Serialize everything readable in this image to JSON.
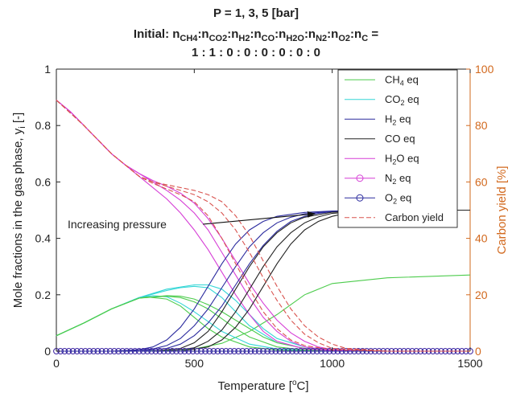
{
  "chart_data": {
    "type": "line",
    "title_lines": [
      "P = 1, 3, 5 [bar]",
      "Initial: n_CH4:n_CO2:n_H2:n_CO:n_H2O:n_N2:n_O2:n_C =",
      "1 : 1 : 0 : 0 : 0 : 0 : 0 : 0"
    ],
    "title_rich": {
      "line1": "P = 1, 3, 5 [bar]",
      "line2_prefix": "Initial: ",
      "line2_parts": [
        {
          "base": "n",
          "sub": "CH4"
        },
        {
          "base": ":n",
          "sub": "CO2"
        },
        {
          "base": ":n",
          "sub": "H2"
        },
        {
          "base": ":n",
          "sub": "CO"
        },
        {
          "base": ":n",
          "sub": "H2O"
        },
        {
          "base": ":n",
          "sub": "N2"
        },
        {
          "base": ":n",
          "sub": "O2"
        },
        {
          "base": ":n",
          "sub": "C"
        }
      ],
      "line2_suffix": " =",
      "line3": "1 : 1 : 0 : 0 : 0 : 0 : 0 : 0"
    },
    "xlabel": "Temperature [°C]",
    "xlabel_parts": {
      "pre": "Temperature [",
      "sup": "o",
      "post": "C]"
    },
    "ylabel": "Mole fractions in the gas phase, y_i [-]",
    "ylabel_parts": {
      "pre": "Mole fractions in the gas phase, y",
      "sub": "i",
      "post": " [-]"
    },
    "y2label": "Carbon yield [%]",
    "xlim": [
      0,
      1500
    ],
    "ylim": [
      0,
      1
    ],
    "y2lim": [
      0,
      100
    ],
    "xticks": [
      0,
      500,
      1000,
      1500
    ],
    "yticks": [
      0,
      0.2,
      0.4,
      0.6,
      0.8,
      1
    ],
    "y2ticks": [
      0,
      20,
      40,
      60,
      80,
      100
    ],
    "legend_position": "top-right",
    "annotation": "Increasing pressure",
    "legend": [
      {
        "label": "CH4 eq",
        "base": "CH",
        "sub": "4",
        "post": " eq",
        "color": "#4dcc4d",
        "marker": "none",
        "dash": "solid"
      },
      {
        "label": "CO2 eq",
        "base": "CO",
        "sub": "2",
        "post": " eq",
        "color": "#33d6d6",
        "marker": "none",
        "dash": "solid"
      },
      {
        "label": "H2 eq",
        "base": "H",
        "sub": "2",
        "post": " eq",
        "color": "#2b2b9e",
        "marker": "none",
        "dash": "solid"
      },
      {
        "label": "CO eq",
        "base": "CO eq",
        "sub": "",
        "post": "",
        "color": "#222222",
        "marker": "none",
        "dash": "solid"
      },
      {
        "label": "H2O eq",
        "base": "H",
        "sub": "2",
        "post": "O eq",
        "color": "#d63fd6",
        "marker": "none",
        "dash": "solid"
      },
      {
        "label": "N2 eq",
        "base": "N",
        "sub": "2",
        "post": " eq",
        "color": "#d63fd6",
        "marker": "circle",
        "dash": "solid"
      },
      {
        "label": "O2 eq",
        "base": "O",
        "sub": "2",
        "post": " eq",
        "color": "#2b2b9e",
        "marker": "circle",
        "dash": "solid"
      },
      {
        "label": "Carbon yield",
        "base": "Carbon yield",
        "sub": "",
        "post": "",
        "color": "#d9534f",
        "marker": "none",
        "dash": "dashed"
      }
    ],
    "series": [
      {
        "name": "CH4 eq",
        "pressure": "P1",
        "color": "#4dcc4d",
        "axis": "left",
        "dash": "solid",
        "x": [
          0,
          100,
          200,
          300,
          400,
          500,
          600,
          700,
          800,
          900,
          1000,
          1200,
          1500
        ],
        "y": [
          0,
          0,
          0,
          0,
          0.002,
          0.008,
          0.028,
          0.07,
          0.13,
          0.2,
          0.24,
          0.26,
          0.27
        ]
      },
      {
        "name": "CO2 eq",
        "pressure": "P1",
        "color": "#33d6d6",
        "axis": "left",
        "dash": "solid",
        "x": [
          0,
          100,
          200,
          300,
          350,
          400,
          450,
          500,
          550,
          600,
          700,
          800,
          900,
          1000,
          1200,
          1500
        ],
        "y": [
          0.055,
          0.1,
          0.15,
          0.19,
          0.197,
          0.193,
          0.17,
          0.14,
          0.105,
          0.07,
          0.025,
          0.008,
          0.003,
          0.001,
          0,
          0
        ]
      },
      {
        "name": "CO2 eq",
        "pressure": "P3",
        "color": "#33d6d6",
        "axis": "left",
        "dash": "solid",
        "x": [
          0,
          100,
          200,
          300,
          400,
          450,
          500,
          550,
          600,
          650,
          700,
          800,
          900,
          1000,
          1200,
          1500
        ],
        "y": [
          0.055,
          0.1,
          0.15,
          0.19,
          0.215,
          0.225,
          0.23,
          0.225,
          0.19,
          0.14,
          0.09,
          0.03,
          0.01,
          0.002,
          0,
          0
        ]
      },
      {
        "name": "CO2 eq",
        "pressure": "P5",
        "color": "#33d6d6",
        "axis": "left",
        "dash": "solid",
        "x": [
          0,
          100,
          200,
          300,
          400,
          500,
          550,
          600,
          650,
          700,
          750,
          800,
          900,
          1000,
          1200,
          1500
        ],
        "y": [
          0.055,
          0.1,
          0.15,
          0.19,
          0.22,
          0.235,
          0.235,
          0.22,
          0.18,
          0.13,
          0.08,
          0.045,
          0.015,
          0.003,
          0,
          0
        ]
      },
      {
        "name": "CH4 eq",
        "pressure": "P1",
        "color": "#4dcc4d",
        "axis": "left",
        "dash": "solid",
        "x": [
          0,
          100,
          200,
          300,
          330,
          400,
          450,
          500,
          550,
          600,
          700,
          800,
          900,
          1000,
          1200,
          1500
        ],
        "y": [
          0.055,
          0.1,
          0.15,
          0.188,
          0.192,
          0.185,
          0.16,
          0.12,
          0.08,
          0.05,
          0.015,
          0.004,
          0.001,
          0,
          0,
          0
        ]
      },
      {
        "name": "CH4 eq",
        "pressure": "P3",
        "color": "#4dcc4d",
        "axis": "left",
        "dash": "solid",
        "x": [
          0,
          100,
          200,
          300,
          400,
          450,
          500,
          550,
          600,
          650,
          700,
          800,
          900,
          1000,
          1200,
          1500
        ],
        "y": [
          0.055,
          0.1,
          0.15,
          0.188,
          0.195,
          0.19,
          0.175,
          0.15,
          0.115,
          0.08,
          0.05,
          0.015,
          0.004,
          0.001,
          0,
          0
        ]
      },
      {
        "name": "CH4 eq",
        "pressure": "P5",
        "color": "#4dcc4d",
        "axis": "left",
        "dash": "solid",
        "x": [
          0,
          100,
          200,
          300,
          400,
          450,
          500,
          550,
          600,
          650,
          700,
          750,
          800,
          900,
          1000,
          1200,
          1500
        ],
        "y": [
          0.055,
          0.1,
          0.15,
          0.188,
          0.197,
          0.195,
          0.185,
          0.165,
          0.14,
          0.11,
          0.08,
          0.05,
          0.03,
          0.01,
          0.002,
          0,
          0
        ]
      },
      {
        "name": "H2O eq",
        "pressure": "P1",
        "color": "#d63fd6",
        "axis": "left",
        "dash": "solid",
        "x": [
          0,
          50,
          100,
          150,
          200,
          250,
          300,
          350,
          400,
          450,
          500,
          550,
          600,
          650,
          700,
          750,
          800,
          900,
          1000,
          1200,
          1500
        ],
        "y": [
          0.89,
          0.85,
          0.8,
          0.75,
          0.7,
          0.66,
          0.62,
          0.58,
          0.54,
          0.49,
          0.43,
          0.36,
          0.28,
          0.2,
          0.13,
          0.07,
          0.035,
          0.008,
          0.002,
          0,
          0
        ]
      },
      {
        "name": "H2O eq",
        "pressure": "P3",
        "color": "#d63fd6",
        "axis": "left",
        "dash": "solid",
        "x": [
          0,
          50,
          100,
          150,
          200,
          250,
          300,
          350,
          400,
          450,
          500,
          550,
          600,
          650,
          700,
          750,
          800,
          850,
          900,
          1000,
          1200,
          1500
        ],
        "y": [
          0.89,
          0.85,
          0.8,
          0.75,
          0.7,
          0.66,
          0.63,
          0.6,
          0.57,
          0.535,
          0.49,
          0.43,
          0.35,
          0.27,
          0.19,
          0.12,
          0.07,
          0.035,
          0.015,
          0.003,
          0,
          0
        ]
      },
      {
        "name": "H2O eq",
        "pressure": "P5",
        "color": "#d63fd6",
        "axis": "left",
        "dash": "solid",
        "x": [
          0,
          50,
          100,
          150,
          200,
          250,
          300,
          350,
          400,
          450,
          500,
          550,
          600,
          650,
          700,
          750,
          800,
          850,
          900,
          950,
          1000,
          1200,
          1500
        ],
        "y": [
          0.89,
          0.85,
          0.8,
          0.75,
          0.7,
          0.66,
          0.63,
          0.605,
          0.585,
          0.56,
          0.525,
          0.47,
          0.4,
          0.32,
          0.24,
          0.17,
          0.11,
          0.065,
          0.035,
          0.015,
          0.006,
          0,
          0
        ]
      },
      {
        "name": "H2 eq",
        "pressure": "P1",
        "color": "#2b2b9e",
        "axis": "left",
        "dash": "solid",
        "x": [
          0,
          200,
          300,
          350,
          400,
          450,
          500,
          550,
          600,
          650,
          700,
          750,
          800,
          900,
          1000,
          1200,
          1500
        ],
        "y": [
          0,
          0,
          0.005,
          0.015,
          0.04,
          0.085,
          0.15,
          0.23,
          0.31,
          0.38,
          0.43,
          0.46,
          0.478,
          0.492,
          0.497,
          0.5,
          0.5
        ]
      },
      {
        "name": "H2 eq",
        "pressure": "P3",
        "color": "#2b2b9e",
        "axis": "left",
        "dash": "solid",
        "x": [
          0,
          250,
          350,
          400,
          450,
          500,
          550,
          600,
          650,
          700,
          750,
          800,
          850,
          900,
          1000,
          1200,
          1500
        ],
        "y": [
          0,
          0,
          0.008,
          0.02,
          0.045,
          0.09,
          0.15,
          0.225,
          0.3,
          0.37,
          0.42,
          0.455,
          0.475,
          0.487,
          0.496,
          0.5,
          0.5
        ]
      },
      {
        "name": "H2 eq",
        "pressure": "P5",
        "color": "#2b2b9e",
        "axis": "left",
        "dash": "solid",
        "x": [
          0,
          300,
          400,
          450,
          500,
          550,
          600,
          650,
          700,
          750,
          800,
          850,
          900,
          950,
          1000,
          1200,
          1500
        ],
        "y": [
          0,
          0,
          0.01,
          0.025,
          0.055,
          0.1,
          0.16,
          0.235,
          0.31,
          0.375,
          0.425,
          0.46,
          0.478,
          0.489,
          0.495,
          0.5,
          0.5
        ]
      },
      {
        "name": "CO eq",
        "pressure": "P1",
        "color": "#222222",
        "axis": "left",
        "dash": "solid",
        "x": [
          0,
          350,
          450,
          500,
          550,
          600,
          650,
          700,
          750,
          800,
          850,
          900,
          1000,
          1200,
          1500
        ],
        "y": [
          0,
          0,
          0.01,
          0.03,
          0.07,
          0.14,
          0.22,
          0.3,
          0.37,
          0.42,
          0.455,
          0.475,
          0.493,
          0.5,
          0.5
        ]
      },
      {
        "name": "CO eq",
        "pressure": "P3",
        "color": "#222222",
        "axis": "left",
        "dash": "solid",
        "x": [
          0,
          400,
          500,
          550,
          600,
          650,
          700,
          750,
          800,
          850,
          900,
          950,
          1000,
          1200,
          1500
        ],
        "y": [
          0,
          0,
          0.012,
          0.035,
          0.075,
          0.14,
          0.22,
          0.3,
          0.37,
          0.42,
          0.455,
          0.476,
          0.489,
          0.5,
          0.5
        ]
      },
      {
        "name": "CO eq",
        "pressure": "P5",
        "color": "#222222",
        "axis": "left",
        "dash": "solid",
        "x": [
          0,
          450,
          550,
          600,
          650,
          700,
          750,
          800,
          850,
          900,
          950,
          1000,
          1050,
          1200,
          1500
        ],
        "y": [
          0,
          0,
          0.015,
          0.04,
          0.085,
          0.15,
          0.23,
          0.31,
          0.38,
          0.43,
          0.46,
          0.478,
          0.489,
          0.5,
          0.5
        ]
      },
      {
        "name": "N2 eq",
        "pressure": "all",
        "color": "#d63fd6",
        "axis": "left",
        "dash": "solid",
        "marker": "circle",
        "x": [
          0,
          1500
        ],
        "y": [
          0,
          0
        ]
      },
      {
        "name": "O2 eq",
        "pressure": "all",
        "color": "#2b2b9e",
        "axis": "left",
        "dash": "solid",
        "marker": "circle",
        "x": [
          0,
          1500
        ],
        "y": [
          0,
          0
        ]
      },
      {
        "name": "Carbon yield",
        "pressure": "P1",
        "color": "#d9534f",
        "axis": "right",
        "dash": "dashed",
        "x": [
          0,
          100,
          200,
          250,
          300,
          350,
          400,
          450,
          500,
          550,
          600,
          650,
          700,
          750,
          800,
          850,
          900,
          1000,
          1200,
          1500
        ],
        "y": [
          89,
          80,
          70,
          66,
          62,
          59.5,
          57.5,
          55.5,
          53,
          48,
          40,
          31,
          22,
          14,
          8,
          4,
          2,
          0.5,
          0,
          0
        ]
      },
      {
        "name": "Carbon yield",
        "pressure": "P3",
        "color": "#d9534f",
        "axis": "right",
        "dash": "dashed",
        "x": [
          0,
          100,
          200,
          250,
          300,
          350,
          400,
          450,
          500,
          550,
          600,
          650,
          700,
          750,
          800,
          850,
          900,
          950,
          1000,
          1200,
          1500
        ],
        "y": [
          89,
          80,
          70,
          66,
          62,
          60,
          58.5,
          57,
          55.5,
          53,
          49,
          43,
          35,
          26,
          18,
          11,
          6,
          3,
          1,
          0,
          0
        ]
      },
      {
        "name": "Carbon yield",
        "pressure": "P5",
        "color": "#d9534f",
        "axis": "right",
        "dash": "dashed",
        "x": [
          0,
          100,
          200,
          250,
          300,
          350,
          400,
          450,
          500,
          550,
          600,
          650,
          700,
          750,
          800,
          850,
          900,
          950,
          1000,
          1050,
          1200,
          1500
        ],
        "y": [
          89,
          80,
          70,
          66,
          62,
          60,
          59,
          58,
          57,
          55.5,
          53,
          48,
          41,
          32,
          23,
          15,
          9,
          5,
          2.5,
          1,
          0,
          0
        ]
      }
    ]
  }
}
